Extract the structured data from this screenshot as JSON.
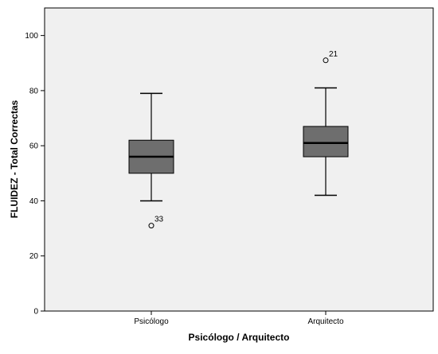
{
  "chart_data": {
    "type": "boxplot",
    "xlabel": "Psicólogo / Arquitecto",
    "ylabel": "FLUIDEZ - Total Correctas",
    "ylim": [
      0,
      110
    ],
    "yticks": [
      0,
      20,
      40,
      60,
      80,
      100
    ],
    "grid": false,
    "categories": [
      "Psicólogo",
      "Arquitecto"
    ],
    "boxes": [
      {
        "category": "Psicólogo",
        "whisker_low": 40,
        "q1": 50,
        "median": 56,
        "q3": 62,
        "whisker_high": 79,
        "outliers": [
          {
            "value": 31,
            "label": "33"
          }
        ]
      },
      {
        "category": "Arquitecto",
        "whisker_low": 42,
        "q1": 56,
        "median": 61,
        "q3": 67,
        "whisker_high": 81,
        "outliers": [
          {
            "value": 91,
            "label": "21"
          }
        ]
      }
    ],
    "colors": {
      "plot_background": "#f0f0f0",
      "box_fill": "#6e6e6e",
      "line": "#000000"
    }
  }
}
